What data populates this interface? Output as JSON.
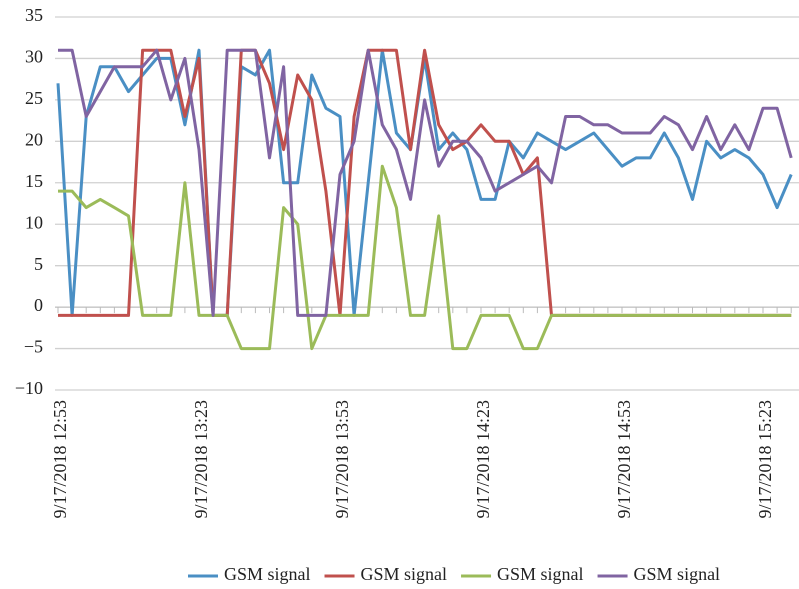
{
  "chart_data": {
    "type": "line",
    "categories": [
      "9/17/2018 12:53",
      null,
      null,
      null,
      null,
      null,
      null,
      null,
      null,
      null,
      "9/17/2018 13:23",
      null,
      null,
      null,
      null,
      null,
      null,
      null,
      null,
      null,
      "9/17/2018 13:53",
      null,
      null,
      null,
      null,
      null,
      null,
      null,
      null,
      null,
      "9/17/2018 14:23",
      null,
      null,
      null,
      null,
      null,
      null,
      null,
      null,
      null,
      "9/17/2018 14:53",
      null,
      null,
      null,
      null,
      null,
      null,
      null,
      null,
      null,
      "9/17/2018 15:23",
      null,
      null
    ],
    "series": [
      {
        "name": "GSM signal",
        "color": "#4a8fc4",
        "values": [
          27,
          -1,
          23,
          29,
          29,
          26,
          28,
          30,
          30,
          22,
          31,
          -1,
          -1,
          29,
          28,
          31,
          15,
          15,
          28,
          24,
          23,
          -1,
          15,
          31,
          21,
          19,
          30,
          19,
          21,
          19,
          13,
          13,
          20,
          18,
          21,
          20,
          19,
          20,
          21,
          19,
          17,
          18,
          18,
          21,
          18,
          13,
          20,
          18,
          19,
          18,
          16,
          12,
          16
        ]
      },
      {
        "name": "GSM signal",
        "color": "#c0504d",
        "values": [
          -1,
          -1,
          -1,
          -1,
          -1,
          -1,
          31,
          31,
          31,
          23,
          30,
          -1,
          -1,
          31,
          31,
          27,
          19,
          28,
          25,
          14,
          -1,
          23,
          31,
          31,
          31,
          19,
          31,
          22,
          19,
          20,
          22,
          20,
          20,
          16,
          18,
          -1,
          -1,
          -1,
          -1,
          -1,
          -1,
          -1,
          -1,
          -1,
          -1,
          -1,
          -1,
          -1,
          -1,
          -1,
          -1,
          -1,
          -1
        ]
      },
      {
        "name": "GSM signal",
        "color": "#9bbb59",
        "values": [
          14,
          14,
          12,
          13,
          12,
          11,
          -1,
          -1,
          -1,
          15,
          -1,
          -1,
          -1,
          -5,
          -5,
          -5,
          12,
          10,
          -5,
          -1,
          -1,
          -1,
          -1,
          17,
          12,
          -1,
          -1,
          11,
          -5,
          -5,
          -1,
          -1,
          -1,
          -5,
          -5,
          -1,
          -1,
          -1,
          -1,
          -1,
          -1,
          -1,
          -1,
          -1,
          -1,
          -1,
          -1,
          -1,
          -1,
          -1,
          -1,
          -1,
          -1
        ]
      },
      {
        "name": "GSM signal",
        "color": "#8064a2",
        "values": [
          31,
          31,
          23,
          26,
          29,
          29,
          29,
          31,
          25,
          30,
          19,
          -1,
          31,
          31,
          31,
          18,
          29,
          -1,
          -1,
          -1,
          16,
          20,
          31,
          22,
          19,
          13,
          25,
          17,
          20,
          20,
          18,
          14,
          15,
          16,
          17,
          15,
          23,
          23,
          22,
          22,
          21,
          21,
          21,
          23,
          22,
          19,
          23,
          19,
          22,
          19,
          24,
          24,
          18
        ]
      }
    ],
    "ylim": [
      -10,
      35
    ],
    "yticks": [
      {
        "value": -10,
        "label": "−10"
      },
      {
        "value": -5,
        "label": "−5"
      },
      0,
      5,
      10,
      15,
      20,
      25,
      30,
      35
    ],
    "grid": true,
    "legend": "bottom"
  }
}
